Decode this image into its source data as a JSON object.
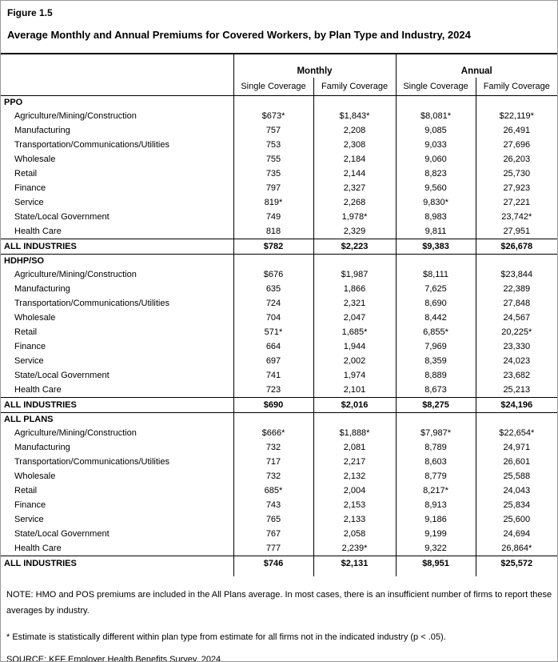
{
  "figure_label": "Figure 1.5",
  "title": "Average Monthly and Annual Premiums for Covered Workers, by Plan Type and Industry, 2024",
  "table": {
    "groups": [
      {
        "label": "Monthly"
      },
      {
        "label": "Annual"
      }
    ],
    "columns": [
      "Single Coverage",
      "Family Coverage",
      "Single Coverage",
      "Family Coverage"
    ],
    "sections": [
      {
        "name": "PPO",
        "rows": [
          {
            "label": "Agriculture/Mining/Construction",
            "values": [
              "$673*",
              "$1,843*",
              "$8,081*",
              "$22,119*"
            ]
          },
          {
            "label": "Manufacturing",
            "values": [
              "757",
              "2,208",
              "9,085",
              "26,491"
            ]
          },
          {
            "label": "Transportation/Communications/Utilities",
            "values": [
              "753",
              "2,308",
              "9,033",
              "27,696"
            ]
          },
          {
            "label": "Wholesale",
            "values": [
              "755",
              "2,184",
              "9,060",
              "26,203"
            ]
          },
          {
            "label": "Retail",
            "values": [
              "735",
              "2,144",
              "8,823",
              "25,730"
            ]
          },
          {
            "label": "Finance",
            "values": [
              "797",
              "2,327",
              "9,560",
              "27,923"
            ]
          },
          {
            "label": "Service",
            "values": [
              "819*",
              "2,268",
              "9,830*",
              "27,221"
            ]
          },
          {
            "label": "State/Local Government",
            "values": [
              "749",
              "1,978*",
              "8,983",
              "23,742*"
            ]
          },
          {
            "label": "Health Care",
            "values": [
              "818",
              "2,329",
              "9,811",
              "27,951"
            ]
          }
        ],
        "total": {
          "label": "ALL INDUSTRIES",
          "values": [
            "$782",
            "$2,223",
            "$9,383",
            "$26,678"
          ]
        }
      },
      {
        "name": "HDHP/SO",
        "rows": [
          {
            "label": "Agriculture/Mining/Construction",
            "values": [
              "$676",
              "$1,987",
              "$8,111",
              "$23,844"
            ]
          },
          {
            "label": "Manufacturing",
            "values": [
              "635",
              "1,866",
              "7,625",
              "22,389"
            ]
          },
          {
            "label": "Transportation/Communications/Utilities",
            "values": [
              "724",
              "2,321",
              "8,690",
              "27,848"
            ]
          },
          {
            "label": "Wholesale",
            "values": [
              "704",
              "2,047",
              "8,442",
              "24,567"
            ]
          },
          {
            "label": "Retail",
            "values": [
              "571*",
              "1,685*",
              "6,855*",
              "20,225*"
            ]
          },
          {
            "label": "Finance",
            "values": [
              "664",
              "1,944",
              "7,969",
              "23,330"
            ]
          },
          {
            "label": "Service",
            "values": [
              "697",
              "2,002",
              "8,359",
              "24,023"
            ]
          },
          {
            "label": "State/Local Government",
            "values": [
              "741",
              "1,974",
              "8,889",
              "23,682"
            ]
          },
          {
            "label": "Health Care",
            "values": [
              "723",
              "2,101",
              "8,673",
              "25,213"
            ]
          }
        ],
        "total": {
          "label": "ALL INDUSTRIES",
          "values": [
            "$690",
            "$2,016",
            "$8,275",
            "$24,196"
          ]
        }
      },
      {
        "name": "ALL PLANS",
        "rows": [
          {
            "label": "Agriculture/Mining/Construction",
            "values": [
              "$666*",
              "$1,888*",
              "$7,987*",
              "$22,654*"
            ]
          },
          {
            "label": "Manufacturing",
            "values": [
              "732",
              "2,081",
              "8,789",
              "24,971"
            ]
          },
          {
            "label": "Transportation/Communications/Utilities",
            "values": [
              "717",
              "2,217",
              "8,603",
              "26,601"
            ]
          },
          {
            "label": "Wholesale",
            "values": [
              "732",
              "2,132",
              "8,779",
              "25,588"
            ]
          },
          {
            "label": "Retail",
            "values": [
              "685*",
              "2,004",
              "8,217*",
              "24,043"
            ]
          },
          {
            "label": "Finance",
            "values": [
              "743",
              "2,153",
              "8,913",
              "25,834"
            ]
          },
          {
            "label": "Service",
            "values": [
              "765",
              "2,133",
              "9,186",
              "25,600"
            ]
          },
          {
            "label": "State/Local Government",
            "values": [
              "767",
              "2,058",
              "9,199",
              "24,694"
            ]
          },
          {
            "label": "Health Care",
            "values": [
              "777",
              "2,239*",
              "9,322",
              "26,864*"
            ]
          }
        ],
        "total": {
          "label": "ALL INDUSTRIES",
          "values": [
            "$746",
            "$2,131",
            "$8,951",
            "$25,572"
          ]
        }
      }
    ]
  },
  "notes": {
    "note": "NOTE: HMO and POS premiums are included in the All Plans average. In most cases, there is an insufficient number of firms to report these averages by industry.",
    "estimate_note": "* Estimate is statistically different within plan type from estimate for all firms not in the indicated industry (p < .05).",
    "source": "SOURCE: KFF Employer Health Benefits Survey, 2024"
  }
}
